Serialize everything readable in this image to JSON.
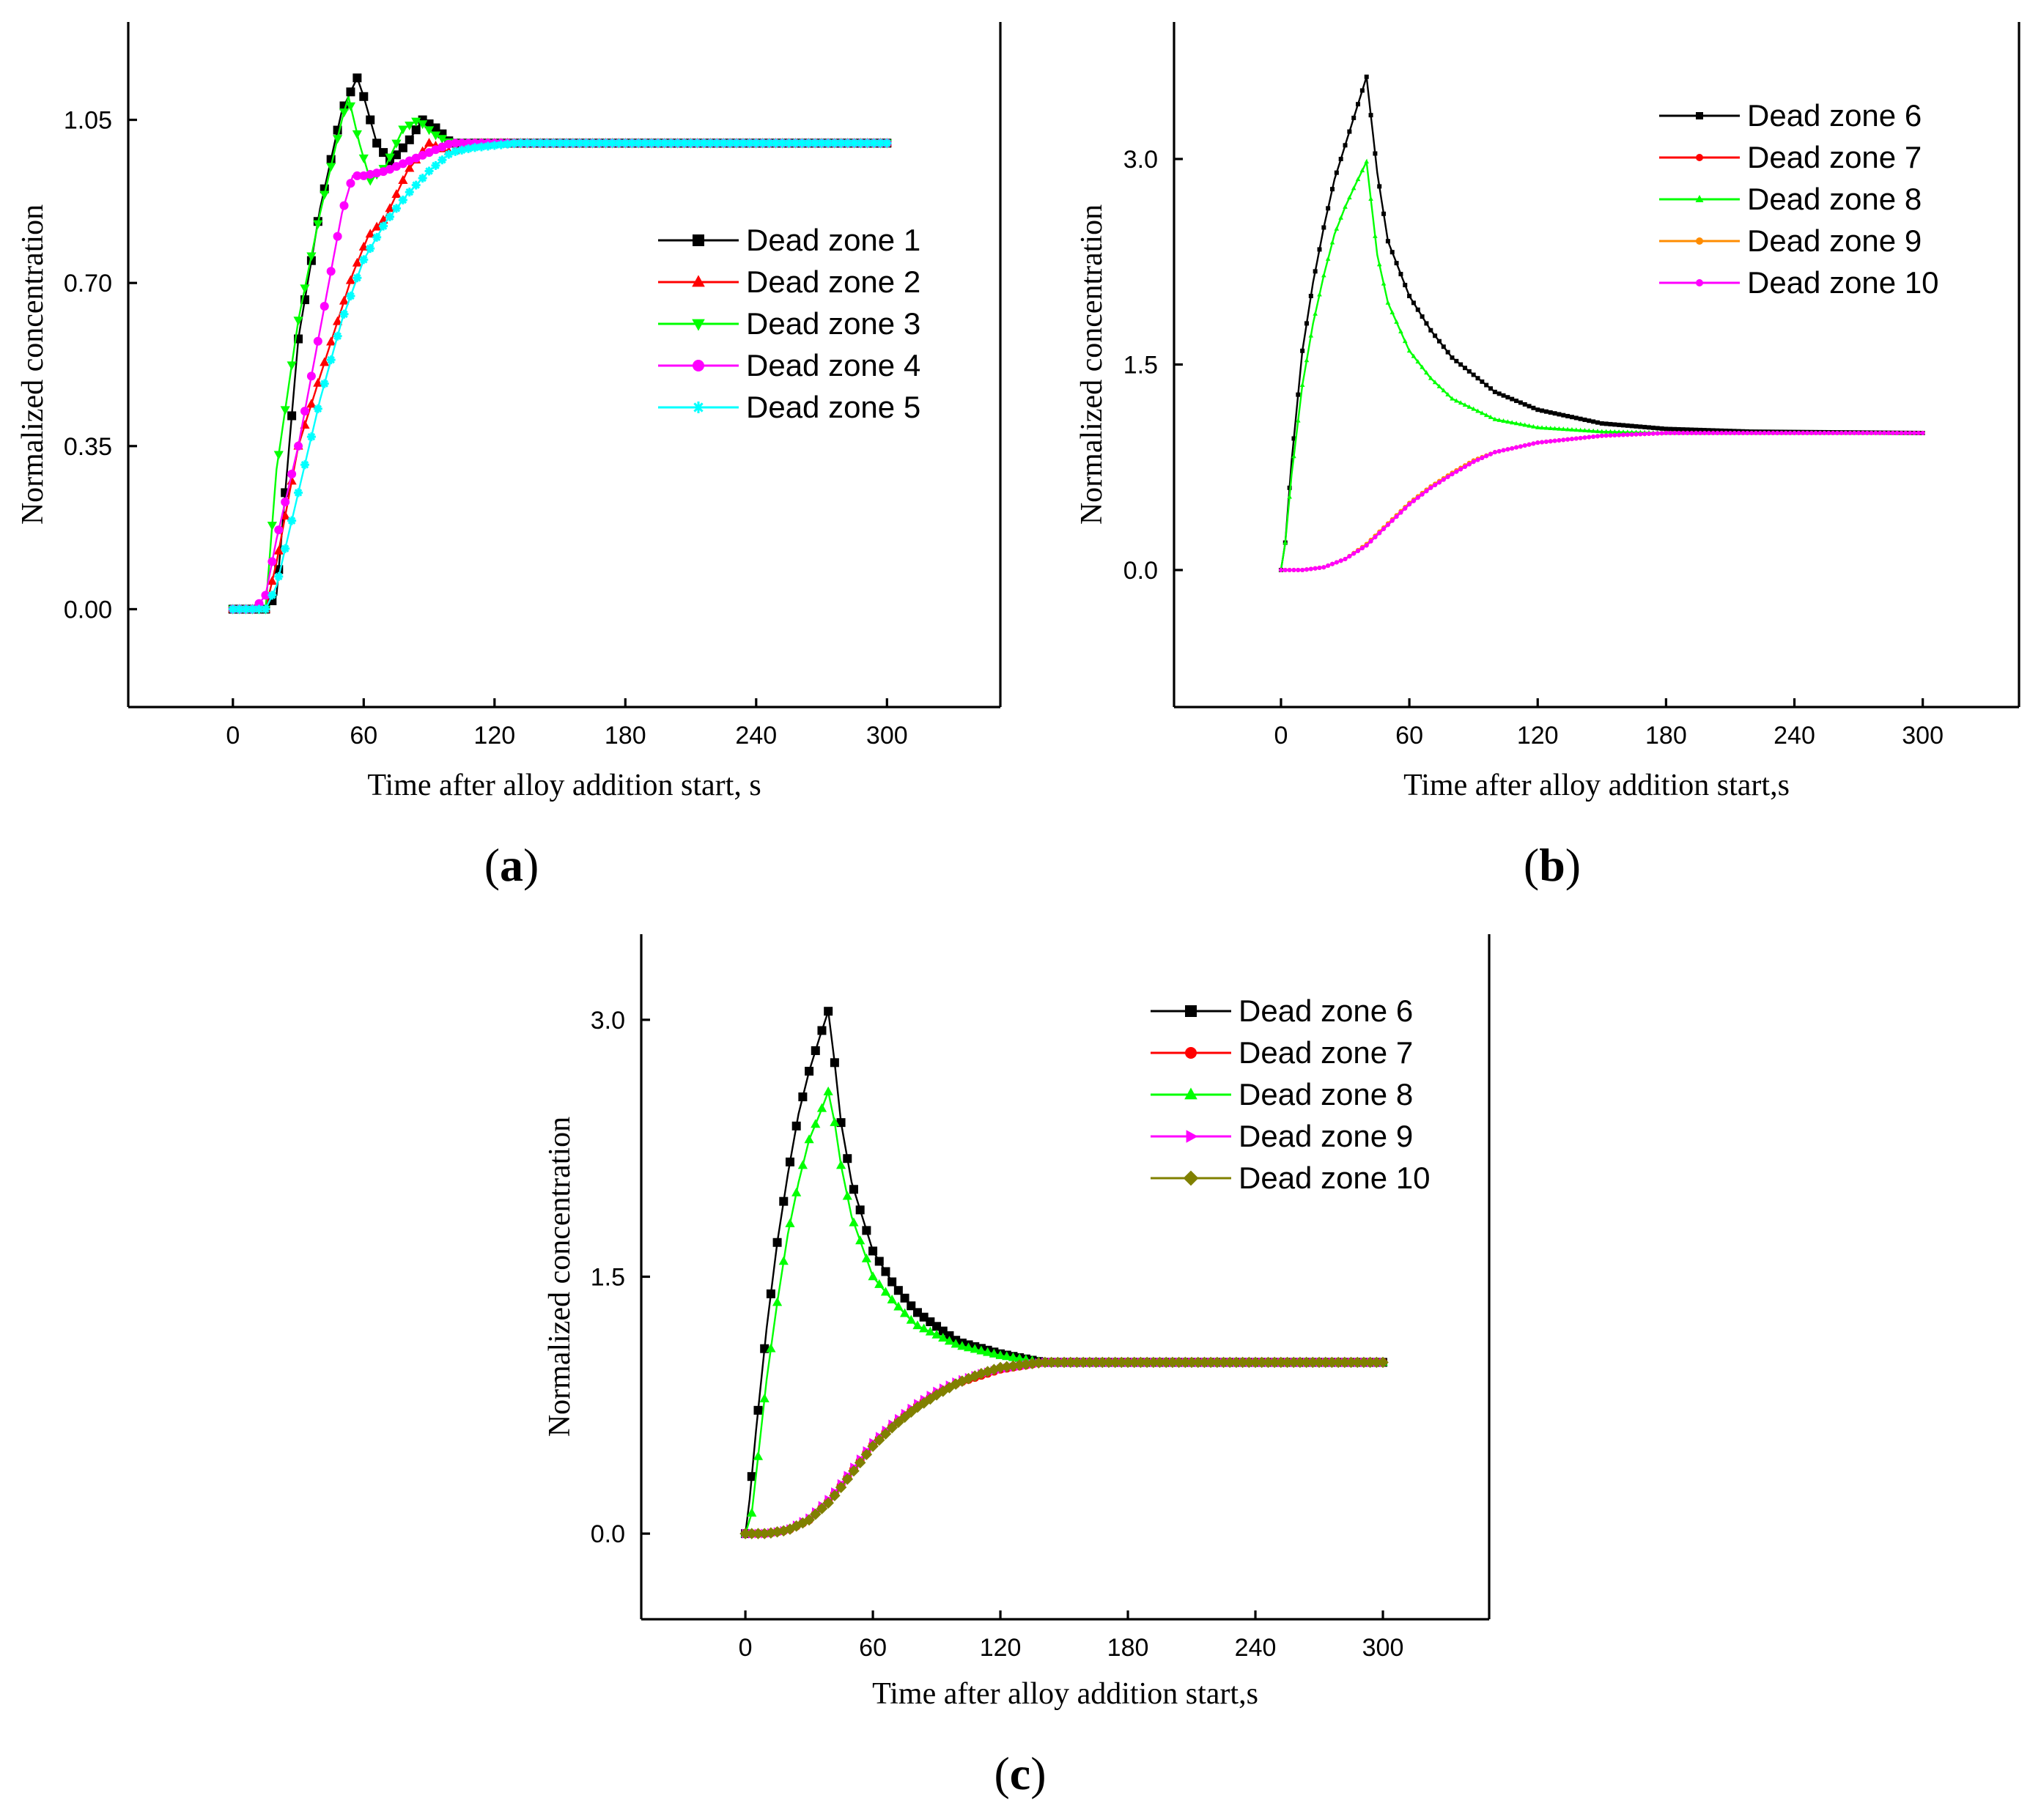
{
  "chart_data": [
    {
      "type": "line",
      "panel_label_open": "(",
      "panel_label_letter": "a",
      "panel_label_close": ")",
      "xlabel": "Time after alloy addition start, s",
      "ylabel": "Normalized concentration",
      "xlim": [
        -48,
        352
      ],
      "ylim": [
        -0.21,
        1.26
      ],
      "xticks": [
        0,
        60,
        120,
        180,
        240,
        300
      ],
      "xtick_labels": [
        "0",
        "60",
        "120",
        "180",
        "240",
        "300"
      ],
      "yticks": [
        0.0,
        0.35,
        0.7,
        1.05
      ],
      "ytick_labels": [
        "0.00",
        "0.35",
        "0.70",
        "1.05"
      ],
      "legend_position": "right-middle",
      "series": [
        {
          "name": "Dead zone 1",
          "color": "#000000",
          "marker": "square",
          "x": [
            0,
            10,
            15,
            20,
            30,
            40,
            50,
            57,
            60,
            66,
            72,
            80,
            87,
            94,
            100,
            110,
            120,
            300
          ],
          "y": [
            0.0,
            0.0,
            0.0,
            0.03,
            0.58,
            0.86,
            1.07,
            1.14,
            1.1,
            1.0,
            0.96,
            1.0,
            1.05,
            1.03,
            1.0,
            1.0,
            1.0,
            1.0
          ]
        },
        {
          "name": "Dead zone 2",
          "color": "#ff0000",
          "marker": "triangle-up",
          "x": [
            0,
            10,
            15,
            20,
            30,
            40,
            55,
            62,
            70,
            80,
            90,
            100,
            110,
            120,
            300
          ],
          "y": [
            0.0,
            0.0,
            0.0,
            0.1,
            0.35,
            0.5,
            0.72,
            0.8,
            0.84,
            0.94,
            1.0,
            0.98,
            1.0,
            1.0,
            1.0
          ]
        },
        {
          "name": "Dead zone 3",
          "color": "#00ff00",
          "marker": "triangle-down",
          "x": [
            0,
            10,
            15,
            20,
            30,
            40,
            50,
            53,
            58,
            63,
            70,
            78,
            85,
            92,
            100,
            110,
            300
          ],
          "y": [
            0.0,
            0.0,
            0.0,
            0.3,
            0.62,
            0.85,
            1.05,
            1.1,
            1.0,
            0.92,
            0.95,
            1.03,
            1.05,
            1.02,
            1.0,
            1.0,
            1.0
          ]
        },
        {
          "name": "Dead zone 4",
          "color": "#ff00ff",
          "marker": "circle",
          "x": [
            0,
            10,
            15,
            20,
            30,
            40,
            50,
            55,
            60,
            70,
            80,
            90,
            100,
            110,
            300
          ],
          "y": [
            0.0,
            0.0,
            0.03,
            0.15,
            0.35,
            0.6,
            0.85,
            0.93,
            0.93,
            0.94,
            0.96,
            0.98,
            1.0,
            1.0,
            1.0
          ]
        },
        {
          "name": "Dead zone 5",
          "color": "#00ffff",
          "marker": "star",
          "x": [
            0,
            10,
            15,
            20,
            30,
            40,
            50,
            60,
            70,
            80,
            90,
            100,
            110,
            130,
            300
          ],
          "y": [
            0.0,
            0.0,
            0.0,
            0.05,
            0.25,
            0.45,
            0.62,
            0.75,
            0.83,
            0.89,
            0.94,
            0.98,
            0.99,
            1.0,
            1.0
          ]
        }
      ]
    },
    {
      "type": "line",
      "panel_label_open": "(",
      "panel_label_letter": "b",
      "panel_label_close": ")",
      "xlabel": "Time after alloy addition start,s",
      "ylabel": "Normalized concentration",
      "xlim": [
        -50,
        345
      ],
      "ylim": [
        -1.0,
        4.0
      ],
      "xticks": [
        0,
        60,
        120,
        180,
        240,
        300
      ],
      "xtick_labels": [
        "0",
        "60",
        "120",
        "180",
        "240",
        "300"
      ],
      "yticks": [
        0.0,
        1.5,
        3.0
      ],
      "ytick_labels": [
        "0.0",
        "1.5",
        "3.0"
      ],
      "legend_position": "top-right",
      "series": [
        {
          "name": "Dead zone 6",
          "color": "#000000",
          "marker": "small-square",
          "x": [
            0,
            2,
            5,
            10,
            15,
            20,
            25,
            30,
            35,
            40,
            45,
            50,
            60,
            70,
            80,
            100,
            120,
            150,
            180,
            220,
            300
          ],
          "y": [
            0.0,
            0.2,
            0.8,
            1.6,
            2.1,
            2.5,
            2.85,
            3.1,
            3.35,
            3.6,
            2.9,
            2.4,
            2.0,
            1.75,
            1.55,
            1.3,
            1.17,
            1.07,
            1.03,
            1.01,
            1.0
          ]
        },
        {
          "name": "Dead zone 7",
          "color": "#ff0000",
          "marker": "small-circle",
          "x": [
            0,
            10,
            20,
            30,
            40,
            50,
            60,
            70,
            80,
            90,
            100,
            120,
            150,
            180,
            300
          ],
          "y": [
            0.0,
            0.0,
            0.02,
            0.08,
            0.18,
            0.33,
            0.48,
            0.6,
            0.7,
            0.79,
            0.86,
            0.93,
            0.98,
            1.0,
            1.0
          ]
        },
        {
          "name": "Dead zone 8",
          "color": "#00ff00",
          "marker": "small-triangle",
          "x": [
            0,
            2,
            5,
            10,
            15,
            20,
            25,
            30,
            35,
            40,
            45,
            50,
            60,
            70,
            80,
            100,
            120,
            150,
            180,
            300
          ],
          "y": [
            0.0,
            0.2,
            0.7,
            1.35,
            1.8,
            2.15,
            2.45,
            2.65,
            2.82,
            2.98,
            2.3,
            1.95,
            1.6,
            1.4,
            1.25,
            1.1,
            1.04,
            1.01,
            1.0,
            1.0
          ]
        },
        {
          "name": "Dead zone 9",
          "color": "#ff8c00",
          "marker": "small-circle",
          "x": [
            0,
            10,
            20,
            30,
            40,
            50,
            60,
            70,
            80,
            90,
            100,
            120,
            150,
            180,
            300
          ],
          "y": [
            0.0,
            0.0,
            0.02,
            0.08,
            0.19,
            0.34,
            0.49,
            0.61,
            0.71,
            0.8,
            0.86,
            0.93,
            0.98,
            1.0,
            1.0
          ]
        },
        {
          "name": "Dead zone 10",
          "color": "#ff00ff",
          "marker": "small-circle",
          "x": [
            0,
            10,
            20,
            30,
            40,
            50,
            60,
            70,
            80,
            90,
            100,
            120,
            150,
            180,
            300
          ],
          "y": [
            0.0,
            0.0,
            0.02,
            0.08,
            0.18,
            0.33,
            0.48,
            0.6,
            0.7,
            0.79,
            0.86,
            0.93,
            0.98,
            1.0,
            1.0
          ]
        }
      ]
    },
    {
      "type": "line",
      "panel_label_open": "(",
      "panel_label_letter": "c",
      "panel_label_close": ")",
      "xlabel": "Time after alloy addition start,s",
      "ylabel": "Normalized concentration",
      "xlim": [
        -49,
        350
      ],
      "ylim": [
        -0.5,
        3.5
      ],
      "xticks": [
        0,
        60,
        120,
        180,
        240,
        300
      ],
      "xtick_labels": [
        "0",
        "60",
        "120",
        "180",
        "240",
        "300"
      ],
      "yticks": [
        0.0,
        1.5,
        3.0
      ],
      "ytick_labels": [
        "0.0",
        "1.5",
        "3.0"
      ],
      "legend_position": "top-right",
      "series": [
        {
          "name": "Dead zone 6",
          "color": "#000000",
          "marker": "square",
          "x": [
            0,
            2,
            5,
            10,
            15,
            20,
            25,
            30,
            35,
            39,
            42,
            45,
            50,
            60,
            70,
            80,
            100,
            120,
            140,
            300
          ],
          "y": [
            0.0,
            0.2,
            0.6,
            1.2,
            1.7,
            2.1,
            2.45,
            2.7,
            2.9,
            3.05,
            2.75,
            2.4,
            2.05,
            1.65,
            1.45,
            1.3,
            1.12,
            1.05,
            1.0,
            1.0
          ]
        },
        {
          "name": "Dead zone 7",
          "color": "#ff0000",
          "marker": "circle",
          "x": [
            0,
            10,
            20,
            30,
            40,
            50,
            60,
            70,
            80,
            90,
            100,
            110,
            120,
            140,
            300
          ],
          "y": [
            0.0,
            0.0,
            0.02,
            0.08,
            0.2,
            0.36,
            0.52,
            0.64,
            0.74,
            0.82,
            0.88,
            0.92,
            0.96,
            1.0,
            1.0
          ]
        },
        {
          "name": "Dead zone 8",
          "color": "#00ff00",
          "marker": "triangle-up",
          "x": [
            0,
            3,
            6,
            10,
            15,
            20,
            25,
            30,
            35,
            39,
            42,
            45,
            50,
            60,
            70,
            80,
            100,
            120,
            140,
            300
          ],
          "y": [
            0.0,
            0.12,
            0.45,
            0.9,
            1.35,
            1.75,
            2.05,
            2.3,
            2.45,
            2.58,
            2.4,
            2.15,
            1.85,
            1.5,
            1.35,
            1.22,
            1.1,
            1.04,
            1.0,
            1.0
          ]
        },
        {
          "name": "Dead zone 9",
          "color": "#ff00ff",
          "marker": "triangle-right",
          "x": [
            0,
            10,
            20,
            30,
            40,
            50,
            60,
            70,
            80,
            90,
            100,
            110,
            120,
            140,
            300
          ],
          "y": [
            0.0,
            0.0,
            0.02,
            0.09,
            0.21,
            0.37,
            0.53,
            0.65,
            0.75,
            0.83,
            0.89,
            0.93,
            0.96,
            1.0,
            1.0
          ]
        },
        {
          "name": "Dead zone 10",
          "color": "#808000",
          "marker": "diamond",
          "x": [
            0,
            10,
            20,
            30,
            40,
            50,
            60,
            70,
            80,
            90,
            100,
            110,
            120,
            140,
            300
          ],
          "y": [
            0.0,
            0.0,
            0.02,
            0.08,
            0.19,
            0.35,
            0.51,
            0.63,
            0.73,
            0.81,
            0.88,
            0.93,
            0.97,
            1.0,
            1.0
          ]
        }
      ]
    }
  ]
}
